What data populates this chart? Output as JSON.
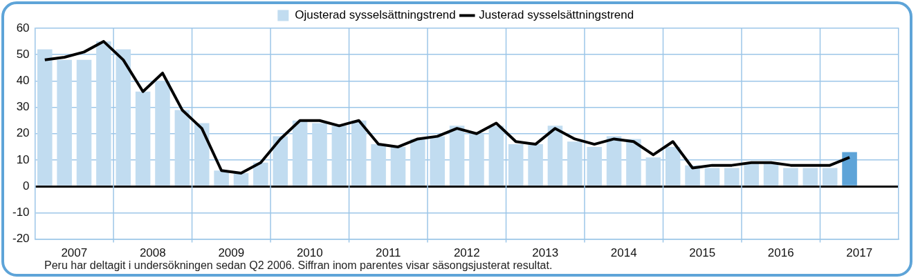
{
  "chart_data": {
    "type": "bar",
    "x": [
      2007.125,
      2007.375,
      2007.625,
      2007.875,
      2008.125,
      2008.375,
      2008.625,
      2008.875,
      2009.125,
      2009.375,
      2009.625,
      2009.875,
      2010.125,
      2010.375,
      2010.625,
      2010.875,
      2011.125,
      2011.375,
      2011.625,
      2011.875,
      2012.125,
      2012.375,
      2012.625,
      2012.875,
      2013.125,
      2013.375,
      2013.625,
      2013.875,
      2014.125,
      2014.375,
      2014.625,
      2014.875,
      2015.125,
      2015.375,
      2015.625,
      2015.875,
      2016.125,
      2016.375,
      2016.625,
      2016.875,
      2017.125,
      2017.375
    ],
    "series": [
      {
        "name": "Ojusterad sysselsättningstrend",
        "color": "#c1dcf0",
        "colors": [
          "#c1dcf0",
          "#c1dcf0",
          "#c1dcf0",
          "#c1dcf0",
          "#c1dcf0",
          "#c1dcf0",
          "#c1dcf0",
          "#c1dcf0",
          "#c1dcf0",
          "#c1dcf0",
          "#c1dcf0",
          "#c1dcf0",
          "#c1dcf0",
          "#c1dcf0",
          "#c1dcf0",
          "#c1dcf0",
          "#c1dcf0",
          "#c1dcf0",
          "#c1dcf0",
          "#c1dcf0",
          "#c1dcf0",
          "#c1dcf0",
          "#c1dcf0",
          "#c1dcf0",
          "#c1dcf0",
          "#c1dcf0",
          "#c1dcf0",
          "#c1dcf0",
          "#c1dcf0",
          "#c1dcf0",
          "#c1dcf0",
          "#c1dcf0",
          "#c1dcf0",
          "#c1dcf0",
          "#c1dcf0",
          "#c1dcf0",
          "#c1dcf0",
          "#c1dcf0",
          "#c1dcf0",
          "#c1dcf0",
          "#c1dcf0",
          "#5ea4d8"
        ],
        "values": [
          52,
          48,
          48,
          55,
          52,
          36,
          40,
          29,
          24,
          6,
          5,
          9,
          19,
          25,
          24,
          23,
          25,
          16,
          15,
          18,
          19,
          23,
          20,
          23,
          16,
          16,
          23,
          17,
          15,
          19,
          18,
          11,
          15,
          8,
          7,
          7,
          9,
          9,
          7,
          7,
          7,
          13
        ]
      },
      {
        "type": "line",
        "name": "Justerad sysselsättningstrend",
        "color": "#000000",
        "values": [
          48,
          49,
          51,
          55,
          48,
          36,
          43,
          29,
          22,
          6,
          5,
          9,
          18,
          25,
          25,
          23,
          25,
          16,
          15,
          18,
          19,
          22,
          20,
          24,
          17,
          16,
          22,
          18,
          16,
          18,
          17,
          12,
          17,
          7,
          8,
          8,
          9,
          9,
          8,
          8,
          8,
          11
        ]
      }
    ],
    "xlim": [
      2007,
      2018
    ],
    "xticks": [
      {
        "value": 2007.5,
        "label": "2007"
      },
      {
        "value": 2008,
        "label": null
      },
      {
        "value": 2008.5,
        "label": "2008"
      },
      {
        "value": 2009,
        "label": null
      },
      {
        "value": 2009.5,
        "label": "2009"
      },
      {
        "value": 2010,
        "label": null
      },
      {
        "value": 2010.5,
        "label": "2010"
      },
      {
        "value": 2011,
        "label": null
      },
      {
        "value": 2011.5,
        "label": "2011"
      },
      {
        "value": 2012,
        "label": null
      },
      {
        "value": 2012.5,
        "label": "2012"
      },
      {
        "value": 2013,
        "label": null
      },
      {
        "value": 2013.5,
        "label": "2013"
      },
      {
        "value": 2014,
        "label": null
      },
      {
        "value": 2014.5,
        "label": "2014"
      },
      {
        "value": 2015,
        "label": null
      },
      {
        "value": 2015.5,
        "label": "2015"
      },
      {
        "value": 2016,
        "label": null
      },
      {
        "value": 2016.5,
        "label": "2016"
      },
      {
        "value": 2017,
        "label": null
      },
      {
        "value": 2017.5,
        "label": "2017"
      }
    ],
    "ylim": [
      -20,
      60
    ],
    "yticks": [
      -20,
      -10,
      0,
      10,
      20,
      30,
      40,
      50,
      60
    ],
    "grid": true,
    "legend": "top",
    "marker": "none",
    "line_style": "solid",
    "annotations": [
      "Peru har deltagit i undersökningen sedan Q2 2006. Siffran inom parentes visar säsongsjusterat resultat."
    ]
  }
}
